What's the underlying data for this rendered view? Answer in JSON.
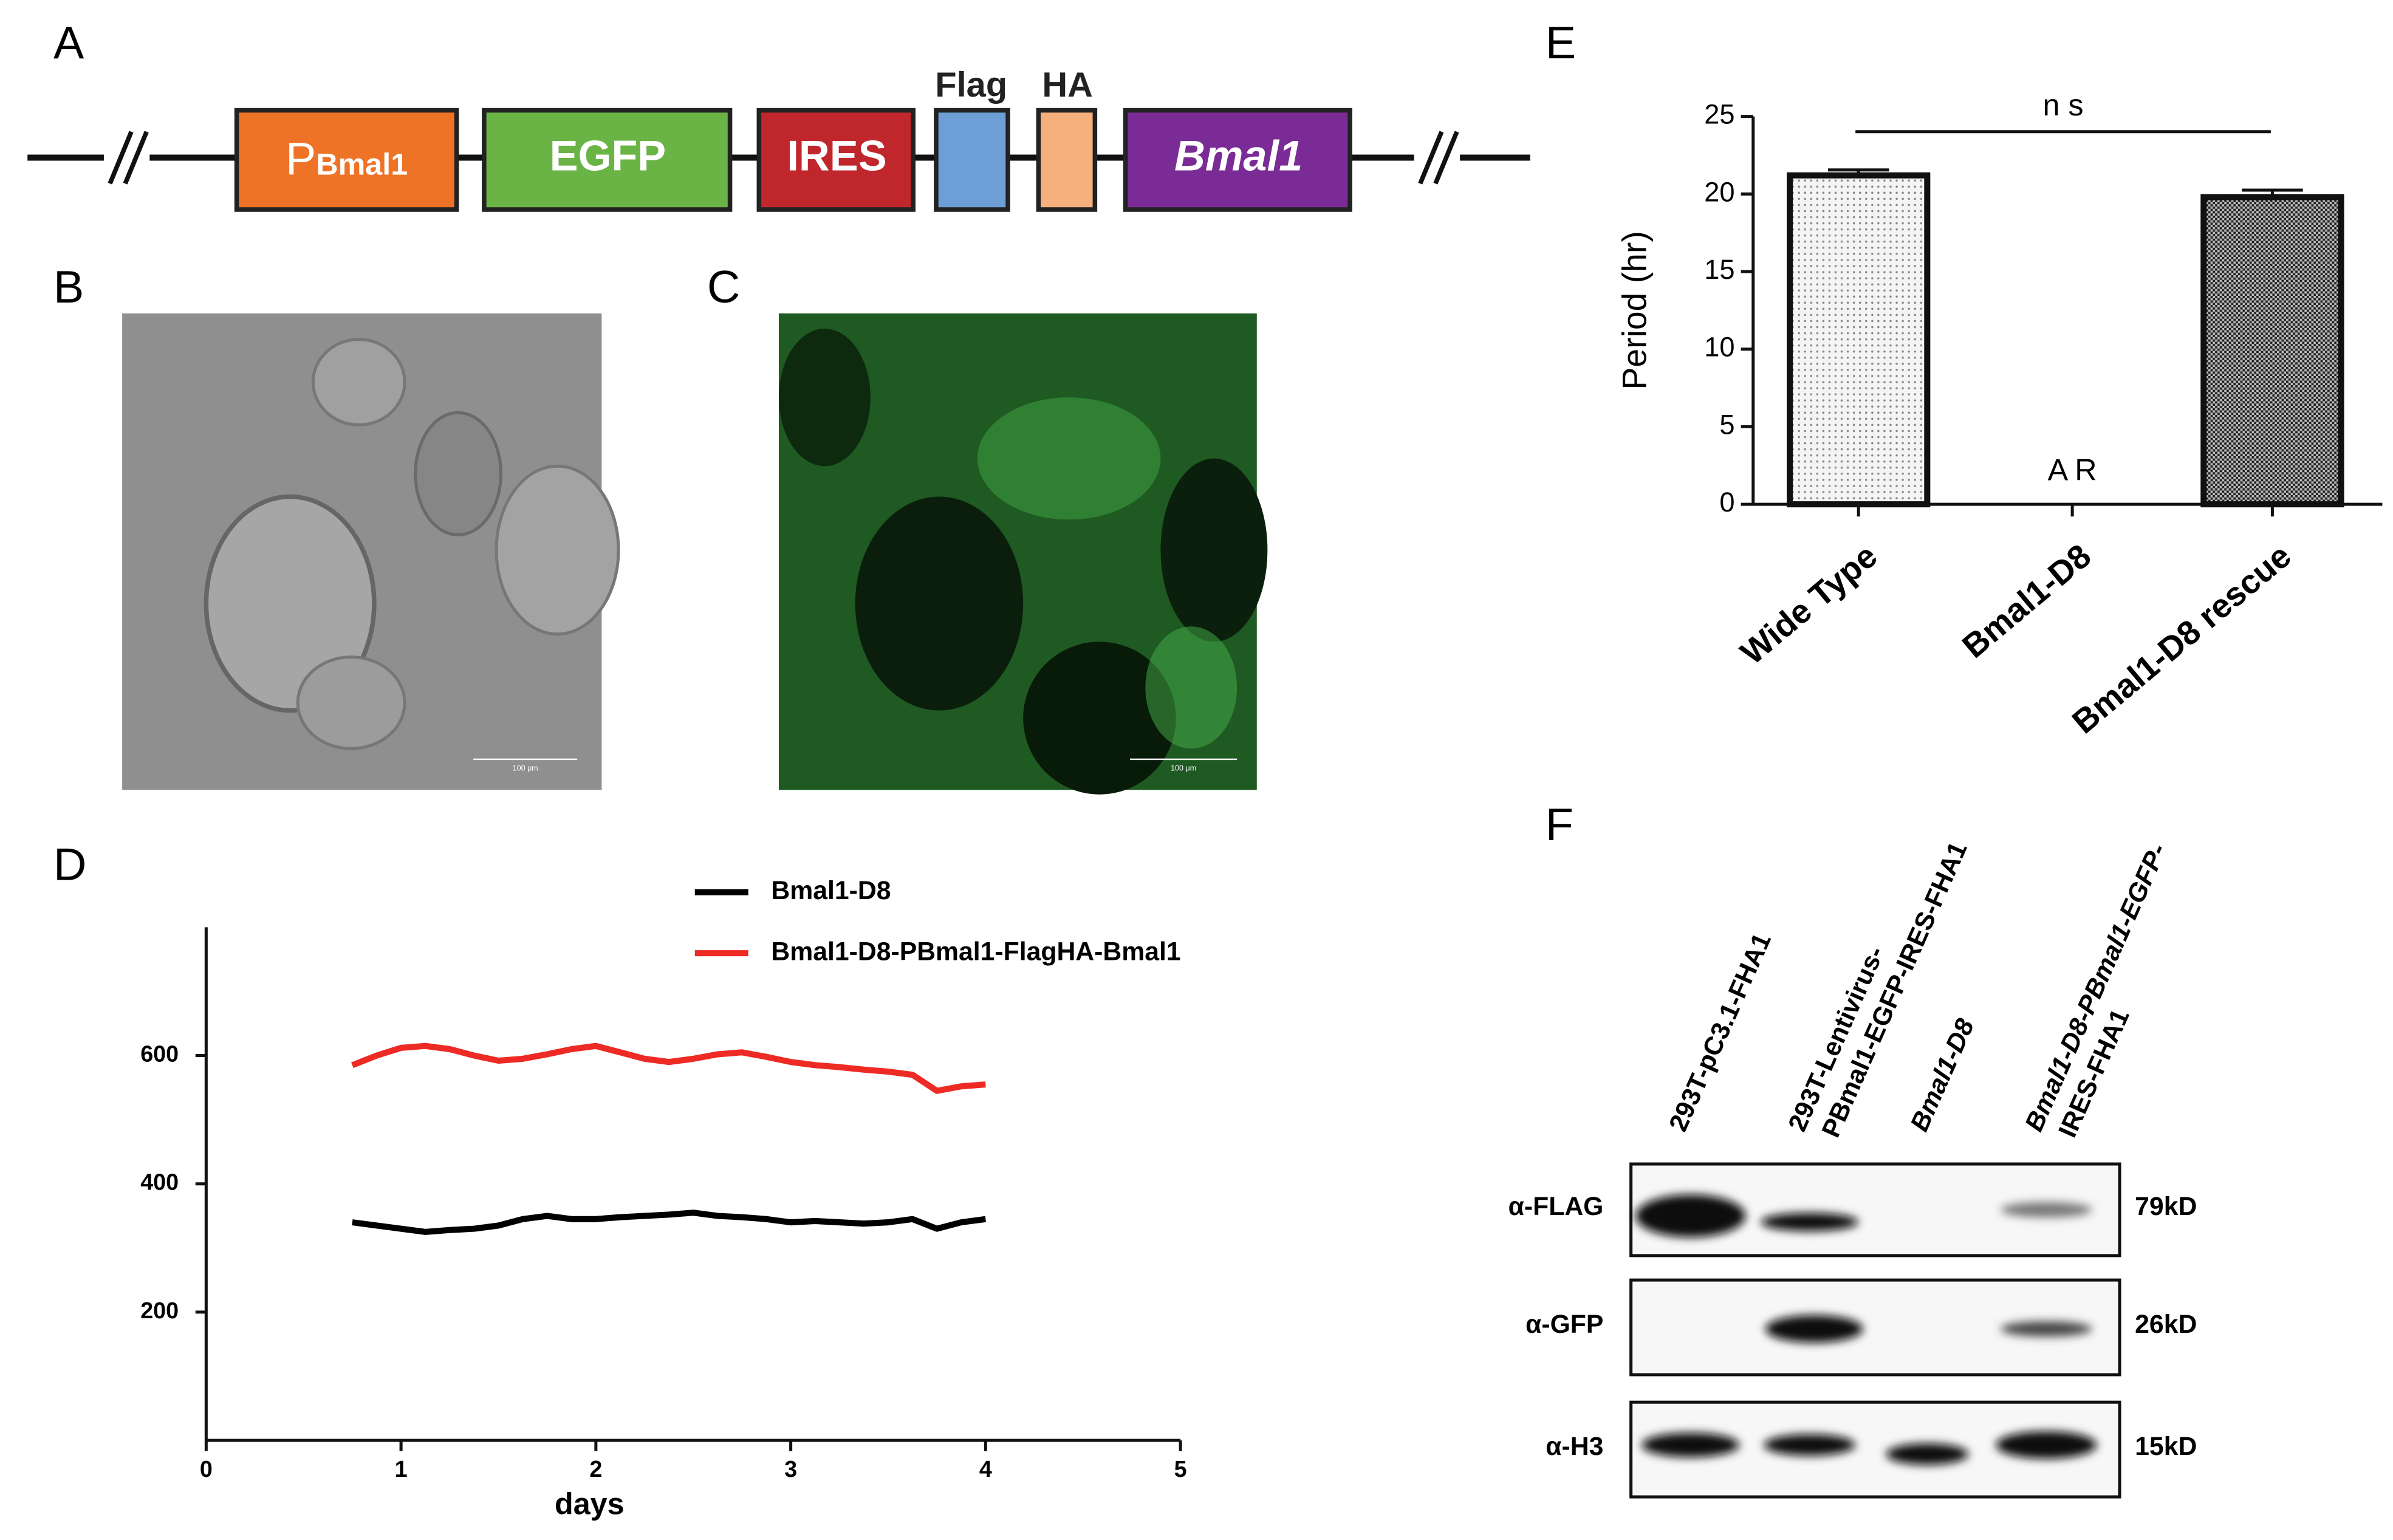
{
  "panel_labels": [
    "A",
    "B",
    "C",
    "D",
    "E",
    "F"
  ],
  "construct": [
    {
      "main": "P",
      "sub": "Bmal1"
    },
    {
      "main": "EGFP"
    },
    {
      "main": "IRES"
    },
    {
      "main": "Flag"
    },
    {
      "main": "HA"
    },
    {
      "main": "Bmal1"
    }
  ],
  "images": [
    {
      "scale_bar": "100 μm"
    },
    {
      "scale_bar": "100 μm"
    }
  ],
  "chart_data": [
    {
      "type": "line",
      "xlabel": "days",
      "x": [
        0.75,
        0.875,
        1.0,
        1.125,
        1.25,
        1.375,
        1.5,
        1.625,
        1.75,
        1.875,
        2.0,
        2.125,
        2.25,
        2.375,
        2.5,
        2.625,
        2.75,
        2.875,
        3.0,
        3.125,
        3.25,
        3.375,
        3.5,
        3.625,
        3.75,
        3.875,
        4.0
      ],
      "series": [
        {
          "name": "Bmal1-D8",
          "color": "#000000",
          "values": [
            340,
            335,
            330,
            325,
            328,
            330,
            335,
            345,
            350,
            345,
            345,
            348,
            350,
            352,
            355,
            350,
            348,
            345,
            340,
            342,
            340,
            338,
            340,
            345,
            330,
            340,
            345
          ]
        },
        {
          "name": "Bmal1-D8-PBmal1-FlagHA-Bmal1",
          "color": "#ee2a24",
          "values": [
            585,
            600,
            612,
            615,
            610,
            600,
            592,
            595,
            602,
            610,
            615,
            605,
            595,
            590,
            595,
            602,
            605,
            598,
            590,
            585,
            582,
            578,
            575,
            570,
            545,
            552,
            555
          ]
        }
      ],
      "xlim": [
        0,
        5
      ],
      "xticks": [
        0,
        1,
        2,
        3,
        4,
        5
      ],
      "ylim": [
        0,
        800
      ],
      "yticks": [
        200,
        400,
        600
      ]
    },
    {
      "type": "bar",
      "ylabel": "Period (hr)",
      "categories": [
        "Wide Type",
        "Bmal1-D8",
        "Bmal1-D8 rescue"
      ],
      "values": [
        21.2,
        null,
        19.8
      ],
      "errors": [
        0.25,
        null,
        0.35
      ],
      "annotations": [
        "n s",
        "A R"
      ],
      "ylim": [
        0,
        25
      ],
      "yticks": [
        0,
        5,
        10,
        15,
        20,
        25
      ]
    }
  ],
  "western_blot": {
    "lanes": [
      [
        "293T-pC3.1-FHA1"
      ],
      [
        "293T-Lentivirus-",
        "PBmal1-EGFP-IRES-FHA1"
      ],
      [
        "Bmal1-D8"
      ],
      [
        "Bmal1-D8-PBmal1-EGFP-",
        "IRES-FHA1"
      ]
    ],
    "rows": [
      {
        "antibody": "α-FLAG",
        "size": "79kD"
      },
      {
        "antibody": "α-GFP",
        "size": "26kD"
      },
      {
        "antibody": "α-H3",
        "size": "15kD"
      }
    ]
  }
}
